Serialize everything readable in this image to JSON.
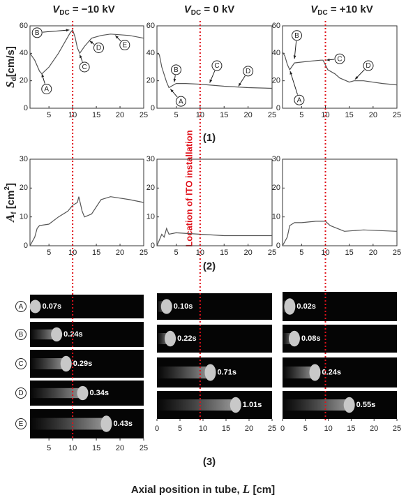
{
  "column_headers": [
    {
      "symbol": "V",
      "subscript": "DC",
      "text": " = −10 kV"
    },
    {
      "symbol": "V",
      "subscript": "DC",
      "text": " = 0 kV"
    },
    {
      "symbol": "V",
      "subscript": "DC",
      "text": " = +10 kV"
    }
  ],
  "chart_data": [
    {
      "type": "line",
      "ylabel": {
        "symbol": "S",
        "subscript": "d",
        "text": "[cm/s]"
      },
      "color": "#555555",
      "xlim": [
        1,
        25
      ],
      "ylim": [
        0,
        60
      ],
      "xticks": [
        5,
        10,
        15,
        20,
        25
      ],
      "yticks": [
        0,
        20,
        40,
        60
      ],
      "x": [
        1,
        2,
        3,
        3.5,
        5,
        7,
        9,
        9.5,
        10,
        10.5,
        11,
        11.5,
        12.5,
        14,
        16,
        18,
        22,
        25
      ],
      "values": [
        40,
        35,
        27,
        25,
        30,
        40,
        52,
        55,
        57,
        52,
        44,
        40,
        45,
        51,
        53,
        54,
        53,
        51
      ],
      "annotations": [
        "A",
        "B",
        "C",
        "D",
        "E"
      ]
    },
    {
      "type": "line",
      "color": "#555555",
      "xlim": [
        1,
        25
      ],
      "ylim": [
        0,
        60
      ],
      "xticks": [
        5,
        10,
        15,
        20,
        25
      ],
      "yticks": [
        0,
        20,
        40,
        60
      ],
      "x": [
        1,
        1.5,
        2,
        3,
        3.5,
        4,
        5,
        7,
        10,
        15,
        20,
        25
      ],
      "values": [
        40,
        39,
        30,
        19,
        15,
        16,
        18,
        18,
        17.5,
        16,
        15,
        14.5
      ],
      "annotations": [
        "A",
        "B",
        "C",
        "D"
      ]
    },
    {
      "type": "line",
      "color": "#555555",
      "xlim": [
        1,
        25
      ],
      "ylim": [
        0,
        60
      ],
      "xticks": [
        5,
        10,
        15,
        20,
        25
      ],
      "yticks": [
        0,
        20,
        40,
        60
      ],
      "x": [
        1,
        1.5,
        2,
        2.5,
        3.5,
        6,
        9,
        9.5,
        10.5,
        12,
        13,
        15,
        16,
        18,
        22,
        25
      ],
      "values": [
        41,
        38,
        32,
        28,
        33,
        34,
        35,
        35,
        28,
        25,
        22,
        19,
        20,
        20,
        18,
        17
      ],
      "annotations": [
        "A",
        "B",
        "C",
        "D"
      ]
    },
    {
      "type": "line",
      "ylabel": {
        "symbol": "A",
        "subscript": "f",
        "text": " [cm",
        "superscript": "2",
        "suffix": "]"
      },
      "color": "#555555",
      "xlim": [
        1,
        25
      ],
      "ylim": [
        0,
        30
      ],
      "xticks": [
        5,
        10,
        15,
        20,
        25
      ],
      "yticks": [
        0,
        10,
        20,
        30
      ],
      "x": [
        1,
        2,
        2.5,
        3,
        5,
        7,
        9,
        10,
        11,
        11.3,
        12,
        12.5,
        14,
        16,
        18,
        22,
        25
      ],
      "values": [
        0,
        3,
        6,
        7,
        7.5,
        10,
        12,
        14,
        15,
        17,
        12,
        10,
        11,
        16,
        17,
        16,
        15
      ]
    },
    {
      "type": "line",
      "color": "#555555",
      "xlim": [
        1,
        25
      ],
      "ylim": [
        0,
        30
      ],
      "xticks": [
        5,
        10,
        15,
        20,
        25
      ],
      "yticks": [
        0,
        10,
        20,
        30
      ],
      "x": [
        1,
        2,
        2.5,
        3,
        3.5,
        5,
        10,
        15,
        25
      ],
      "values": [
        0,
        4,
        3,
        6,
        4,
        4.5,
        4,
        3.5,
        3.5
      ]
    },
    {
      "type": "line",
      "color": "#555555",
      "xlim": [
        1,
        25
      ],
      "ylim": [
        0,
        30
      ],
      "xticks": [
        5,
        10,
        15,
        20,
        25
      ],
      "yticks": [
        0,
        10,
        20,
        30
      ],
      "x": [
        1,
        2,
        2.5,
        3.5,
        5,
        8,
        10,
        11,
        14,
        18,
        25
      ],
      "values": [
        0,
        3,
        7,
        8,
        8,
        8.5,
        8.5,
        7,
        5,
        5.5,
        5
      ]
    }
  ],
  "panel_labels": [
    "(1)",
    "(2)",
    "(3)"
  ],
  "image_panels": [
    {
      "row_letters": [
        "A",
        "B",
        "C",
        "D",
        "E"
      ],
      "times": [
        "0.07s",
        "0.24s",
        "0.29s",
        "0.34s",
        "0.43s"
      ],
      "xlim": [
        1,
        25
      ],
      "xticks": [
        5,
        10,
        15,
        20,
        25
      ]
    },
    {
      "times": [
        "0.10s",
        "0.22s",
        "0.71s",
        "1.01s"
      ],
      "xlim": [
        0,
        25
      ],
      "xticks": [
        0,
        5,
        10,
        15,
        20,
        25
      ]
    },
    {
      "times": [
        "0.02s",
        "0.08s",
        "0.24s",
        "0.55s"
      ],
      "xlim": [
        0,
        25
      ],
      "xticks": [
        0,
        5,
        10,
        15,
        20,
        25
      ]
    }
  ],
  "x_axis_label": {
    "prefix": "Axial position in tube, ",
    "symbol": "L",
    "suffix": " [cm]"
  },
  "ito_location": {
    "label": "Location of ITO installation",
    "x": 10
  }
}
